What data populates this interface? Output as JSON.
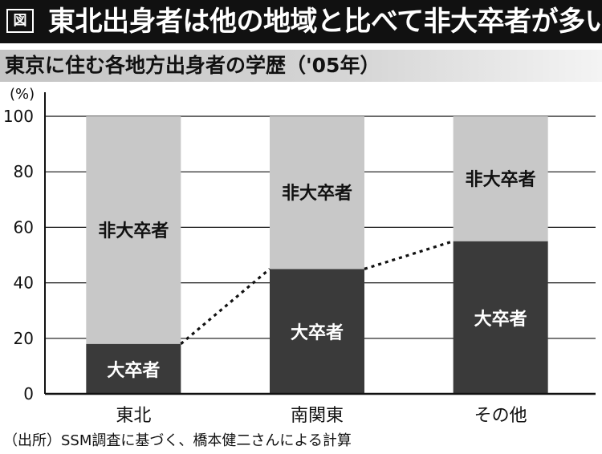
{
  "header": {
    "figure_label": "図",
    "title": "東北出身者は他の地域と比べて非大卒者が多い"
  },
  "subtitle": "東京に住む各地方出身者の学歴（'05年）",
  "source_note": "（出所）SSM調査に基づく、橋本健二さんによる計算",
  "colors": {
    "title_bg": "#111111",
    "graduate": "#3a3a3a",
    "non_graduate": "#c8c8c8",
    "axis": "#111111",
    "grid": "#111111"
  },
  "chart_data": {
    "type": "bar",
    "stacked": true,
    "categories": [
      "東北",
      "南関東",
      "その他"
    ],
    "series": [
      {
        "name": "大卒者",
        "values": [
          18,
          45,
          55
        ]
      },
      {
        "name": "非大卒者",
        "values": [
          82,
          55,
          45
        ]
      }
    ],
    "ylabel": "(%)",
    "ylim": [
      0,
      100
    ],
    "yticks": [
      0,
      20,
      40,
      60,
      80,
      100
    ],
    "grid": true,
    "legend": "none",
    "connector": "dotted line joining tops of 大卒者 segments"
  }
}
